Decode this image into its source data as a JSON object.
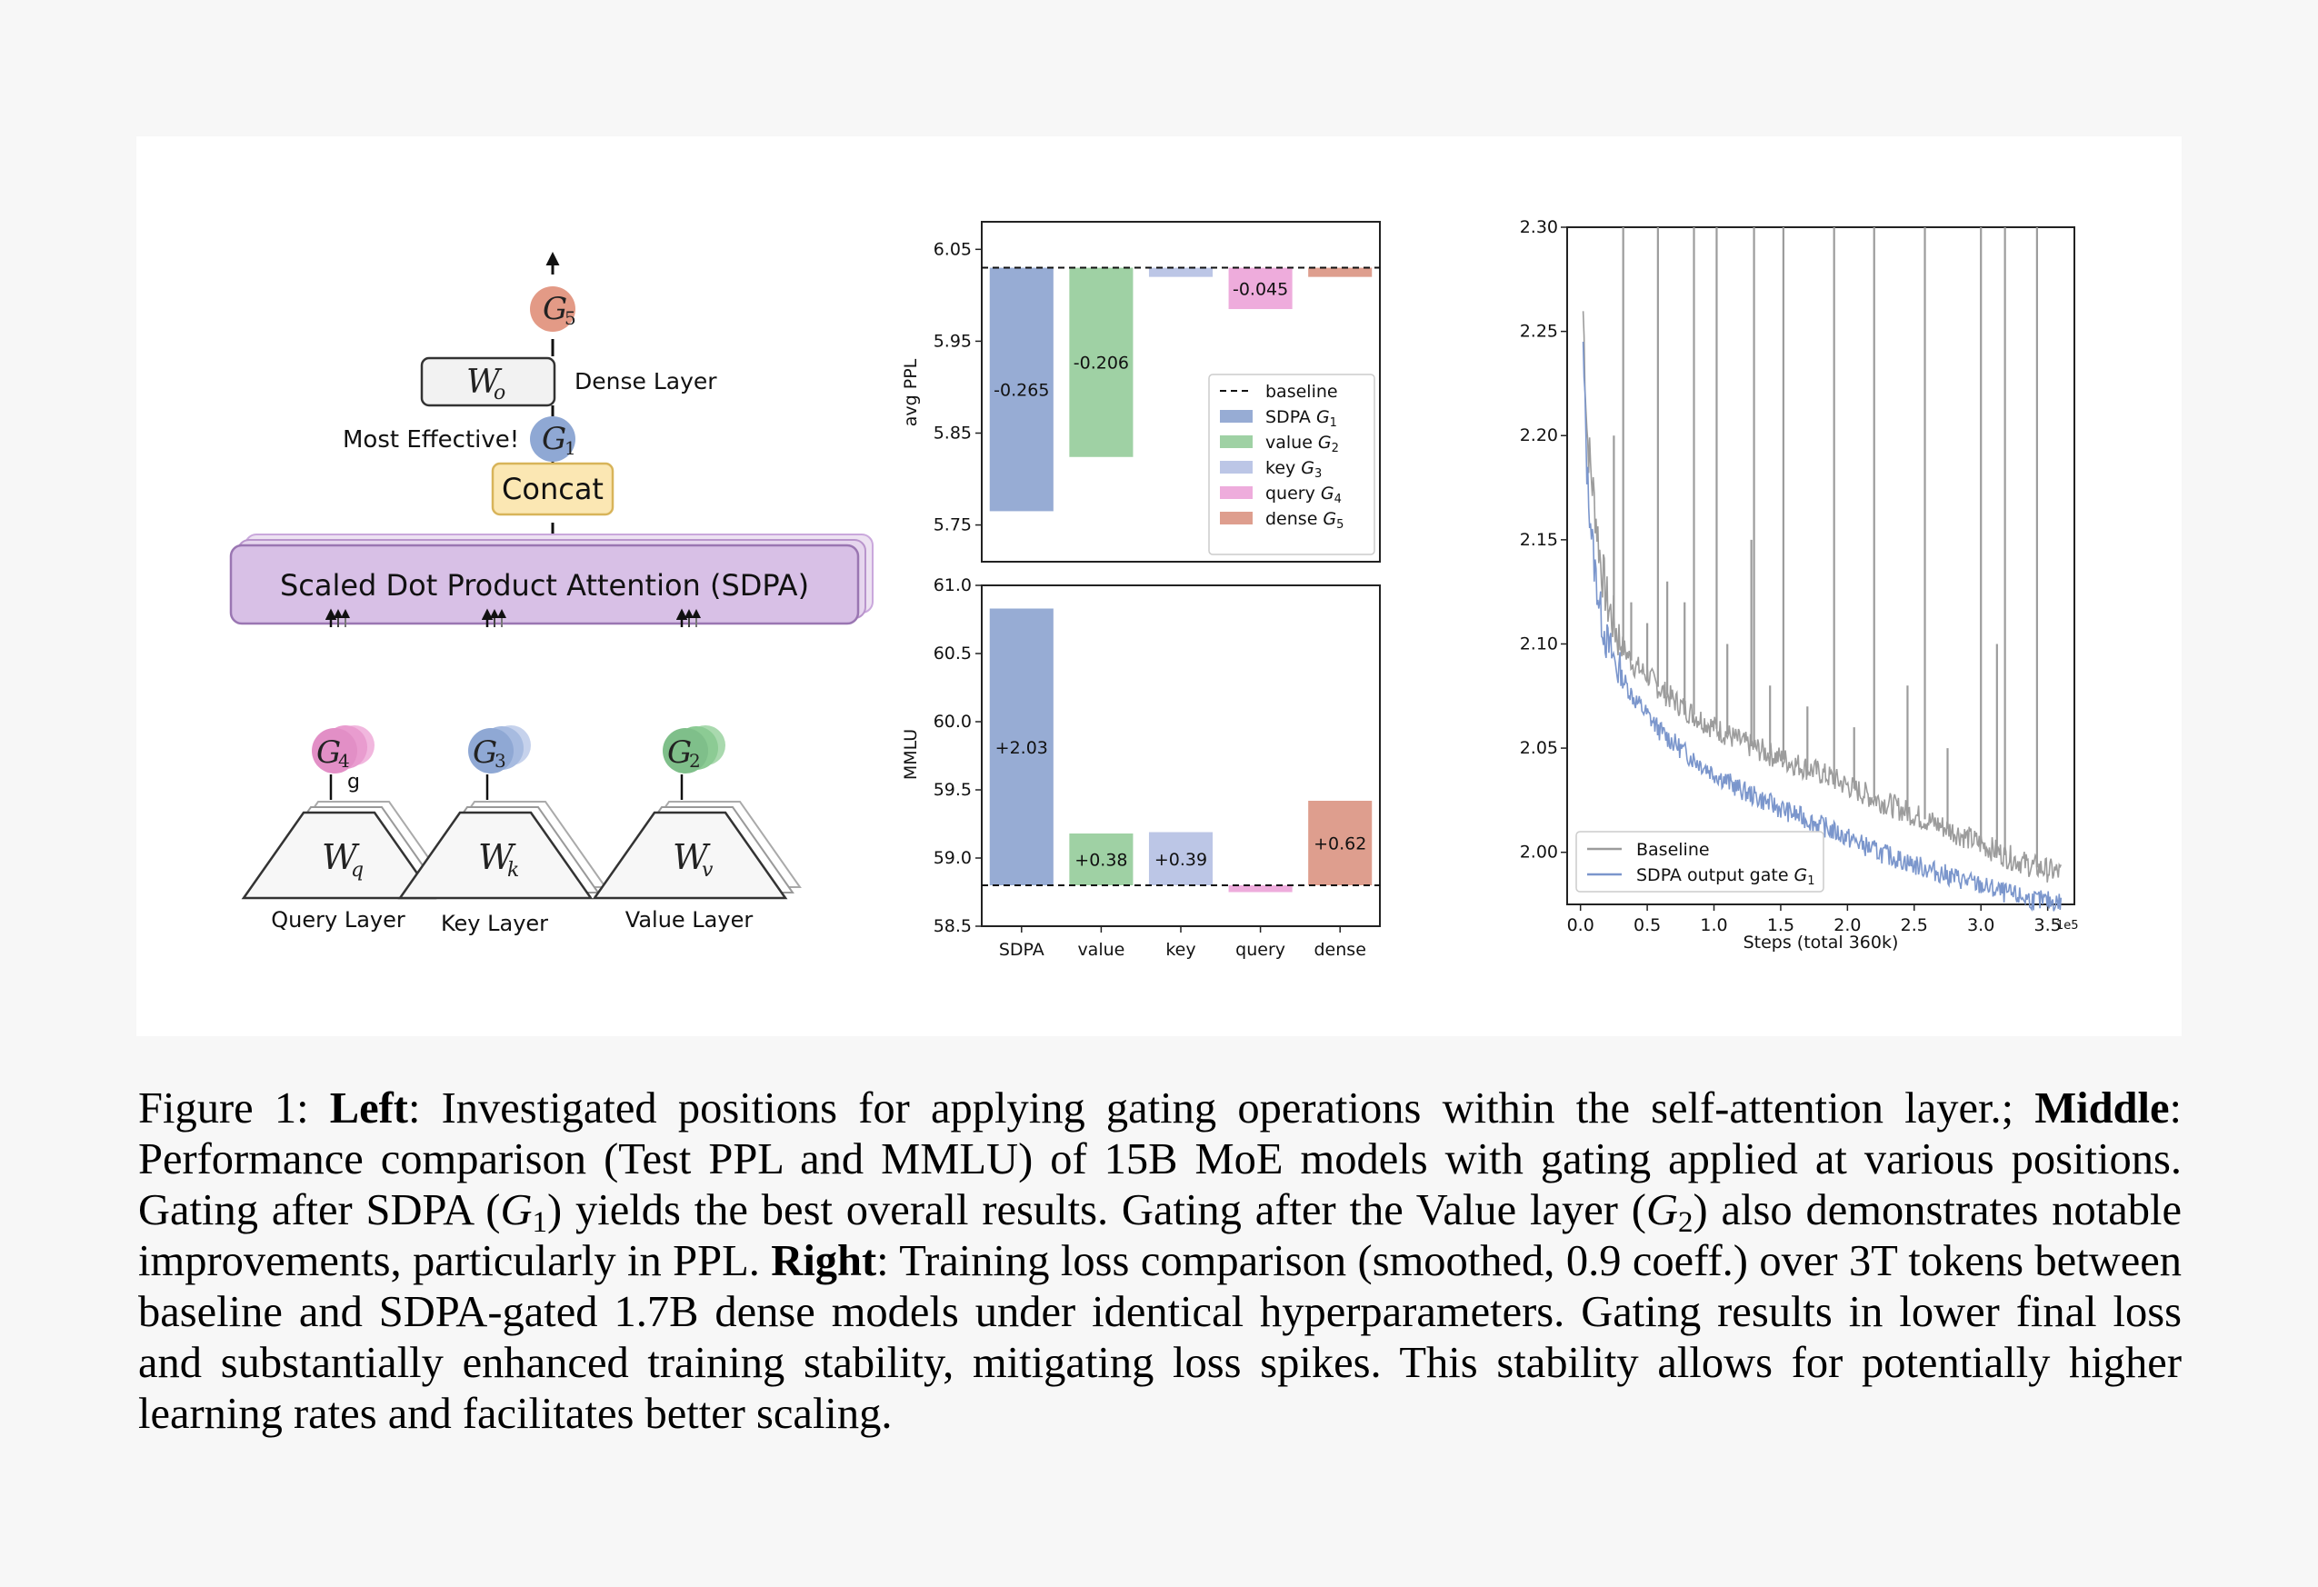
{
  "diagram": {
    "gates": {
      "g1": {
        "letter": "G",
        "sub": "1",
        "color": "#8fa8d4"
      },
      "g2": {
        "letter": "G",
        "sub": "2",
        "color": "#7fbf8a"
      },
      "g3": {
        "letter": "G",
        "sub": "3",
        "color": "#8fa8d4"
      },
      "g4": {
        "letter": "G",
        "sub": "4",
        "color": "#e28fc6"
      },
      "g5": {
        "letter": "G",
        "sub": "5",
        "color": "#e39a86"
      }
    },
    "dense_box": {
      "letter": "W",
      "sub": "o"
    },
    "dense_label": "Dense Layer",
    "most_effective": "Most Effective!",
    "concat": "Concat",
    "sdpa": "Scaled Dot Product Attention (SDPA)",
    "stray_glyph": "g",
    "layers": [
      {
        "letter": "W",
        "sub": "q",
        "label": "Query Layer"
      },
      {
        "letter": "W",
        "sub": "k",
        "label": "Key Layer"
      },
      {
        "letter": "W",
        "sub": "v",
        "label": "Value Layer"
      }
    ]
  },
  "chart_data": [
    {
      "type": "bar",
      "categories": [
        "SDPA",
        "value",
        "key",
        "query",
        "dense"
      ],
      "baseline": 6.03,
      "deltas": [
        -0.265,
        -0.206,
        -0.01,
        -0.045,
        -0.01
      ],
      "bar_labels": [
        "-0.265",
        "-0.206",
        "",
        "-0.045",
        ""
      ],
      "ylabel": "avg PPL",
      "yticks": [
        "6.05",
        "5.95",
        "5.85",
        "5.75"
      ],
      "ylim": [
        5.71,
        6.08
      ],
      "colors": [
        "#97acd4",
        "#9fd1a4",
        "#bcc6e6",
        "#eeacdc",
        "#de9e8e"
      ],
      "legend": {
        "position": "lower-right",
        "entries": [
          {
            "label": "baseline",
            "style": "dashed"
          },
          {
            "label": "SDPA",
            "gate": "G",
            "sub": "1"
          },
          {
            "label": "value",
            "gate": "G",
            "sub": "2"
          },
          {
            "label": "key",
            "gate": "G",
            "sub": "3"
          },
          {
            "label": "query",
            "gate": "G",
            "sub": "4"
          },
          {
            "label": "dense",
            "gate": "G",
            "sub": "5"
          }
        ]
      }
    },
    {
      "type": "bar",
      "categories": [
        "SDPA",
        "value",
        "key",
        "query",
        "dense"
      ],
      "baseline": 58.8,
      "deltas": [
        2.03,
        0.38,
        0.39,
        -0.05,
        0.62
      ],
      "bar_labels": [
        "+2.03",
        "+0.38",
        "+0.39",
        "",
        "+0.62"
      ],
      "ylabel": "MMLU",
      "yticks": [
        "61.0",
        "60.5",
        "60.0",
        "59.5",
        "59.0",
        "58.5"
      ],
      "ylim": [
        58.5,
        61.0
      ],
      "colors": [
        "#97acd4",
        "#9fd1a4",
        "#bcc6e6",
        "#eeacdc",
        "#de9e8e"
      ]
    },
    {
      "type": "line",
      "xlabel": "Steps (total 360k)",
      "x_multiplier": "1e5",
      "xticks": [
        "0.0",
        "0.5",
        "1.0",
        "1.5",
        "2.0",
        "2.5",
        "3.0",
        "3.5"
      ],
      "xlim": [
        -0.1,
        3.7
      ],
      "yticks": [
        "2.30",
        "2.25",
        "2.20",
        "2.15",
        "2.10",
        "2.05",
        "2.00"
      ],
      "ylim": [
        1.975,
        2.3
      ],
      "legend": {
        "position": "lower-left",
        "entries": [
          {
            "label": "Baseline"
          },
          {
            "label": "SDPA output gate",
            "gate": "G",
            "sub": "1"
          }
        ]
      },
      "series": [
        {
          "name": "Baseline",
          "color": "#9c9c9c",
          "x": [
            0.02,
            0.05,
            0.1,
            0.15,
            0.2,
            0.3,
            0.4,
            0.5,
            0.6,
            0.8,
            1.0,
            1.2,
            1.5,
            1.8,
            2.0,
            2.2,
            2.5,
            2.8,
            3.0,
            3.2,
            3.4,
            3.6
          ],
          "y": [
            2.26,
            2.2,
            2.17,
            2.14,
            2.12,
            2.1,
            2.09,
            2.085,
            2.078,
            2.068,
            2.06,
            2.053,
            2.045,
            2.038,
            2.032,
            2.026,
            2.018,
            2.01,
            2.004,
            1.998,
            1.993,
            1.99
          ],
          "spikes": [
            {
              "x": 0.32,
              "y": 2.3
            },
            {
              "x": 0.58,
              "y": 2.3
            },
            {
              "x": 0.85,
              "y": 2.3
            },
            {
              "x": 1.02,
              "y": 2.3
            },
            {
              "x": 1.3,
              "y": 2.3
            },
            {
              "x": 1.28,
              "y": 2.15
            },
            {
              "x": 1.52,
              "y": 2.3
            },
            {
              "x": 1.9,
              "y": 2.3
            },
            {
              "x": 2.2,
              "y": 2.3
            },
            {
              "x": 2.58,
              "y": 2.3
            },
            {
              "x": 3.0,
              "y": 2.3
            },
            {
              "x": 3.18,
              "y": 2.3
            },
            {
              "x": 3.12,
              "y": 2.1
            },
            {
              "x": 3.42,
              "y": 2.3
            },
            {
              "x": 0.25,
              "y": 2.2
            },
            {
              "x": 0.38,
              "y": 2.12
            },
            {
              "x": 0.5,
              "y": 2.11
            },
            {
              "x": 0.65,
              "y": 2.13
            },
            {
              "x": 0.78,
              "y": 2.12
            },
            {
              "x": 1.1,
              "y": 2.1
            },
            {
              "x": 1.42,
              "y": 2.08
            },
            {
              "x": 1.7,
              "y": 2.07
            },
            {
              "x": 2.05,
              "y": 2.06
            },
            {
              "x": 2.45,
              "y": 2.08
            },
            {
              "x": 2.75,
              "y": 2.05
            }
          ]
        },
        {
          "name": "SDPA output gate",
          "color": "#7b96cc",
          "x": [
            0.02,
            0.05,
            0.1,
            0.15,
            0.2,
            0.3,
            0.4,
            0.5,
            0.6,
            0.8,
            1.0,
            1.2,
            1.5,
            1.8,
            2.0,
            2.2,
            2.5,
            2.8,
            3.0,
            3.2,
            3.4,
            3.6
          ],
          "y": [
            2.24,
            2.18,
            2.14,
            2.115,
            2.1,
            2.085,
            2.074,
            2.066,
            2.058,
            2.047,
            2.038,
            2.03,
            2.021,
            2.013,
            2.007,
            2.001,
            1.994,
            1.988,
            1.984,
            1.98,
            1.977,
            1.976
          ]
        }
      ]
    }
  ],
  "caption": {
    "fig_label": "Figure 1:",
    "left_head": "Left",
    "left_text": ": Investigated positions for applying gating operations within the self-attention layer.;",
    "middle_head": "Middle",
    "middle_text_1": ": Performance comparison (Test PPL and MMLU) of 15B MoE models with gating applied at various positions. Gating after SDPA (",
    "g1_letter": "G",
    "g1_sub": "1",
    "middle_text_2": ") yields the best overall results. Gating after the Value layer (",
    "g2_letter": "G",
    "g2_sub": "2",
    "middle_text_3": ") also demonstrates notable improvements, particularly in PPL.",
    "right_head": "Right",
    "right_text": ": Training loss comparison (smoothed, 0.9 coeff.) over 3T tokens between baseline and SDPA-gated 1.7B dense models under identical hyperparameters. Gating results in lower final loss and substantially enhanced training stability, mitigating loss spikes. This stability allows for potentially higher learning rates and facilitates better scaling."
  }
}
